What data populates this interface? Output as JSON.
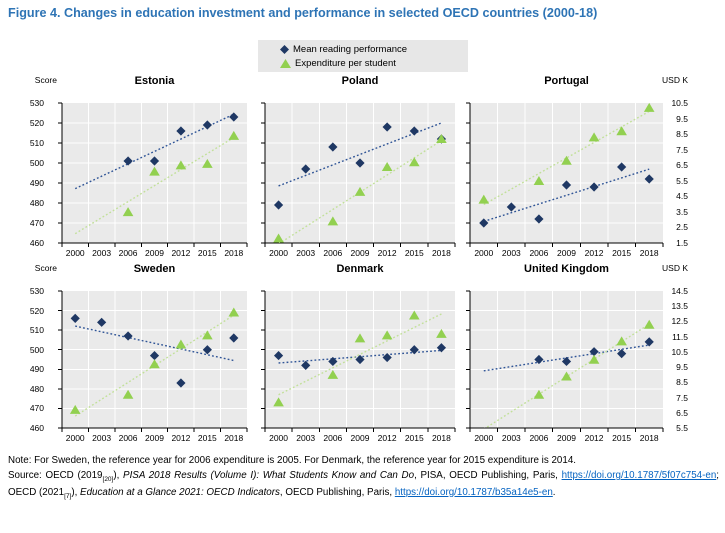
{
  "title": "Figure 4. Changes in education investment and performance in selected OECD countries (2000-18)",
  "legend": {
    "items": [
      {
        "marker": "diamond-icon",
        "label": "Mean reading performance"
      },
      {
        "marker": "triangle-icon",
        "label": "Expenditure per student"
      }
    ]
  },
  "axes": {
    "left_title": "Score",
    "right_title": "USD K",
    "years": [
      2000,
      2003,
      2006,
      2009,
      2012,
      2015,
      2018
    ],
    "score_ticks": [
      530,
      520,
      510,
      500,
      490,
      480,
      470,
      460
    ],
    "row_right_ticks": [
      [
        10.5,
        9.5,
        8.5,
        7.5,
        6.5,
        5.5,
        4.5,
        3.5,
        2.5,
        1.5
      ],
      [
        14.5,
        13.5,
        12.5,
        11.5,
        10.5,
        9.5,
        8.5,
        7.5,
        6.5,
        5.5
      ]
    ]
  },
  "chart_data": [
    {
      "type": "scatter",
      "country": "Estonia",
      "row": 0,
      "x": [
        2000,
        2003,
        2006,
        2009,
        2012,
        2015,
        2018
      ],
      "ylim_left": [
        460,
        530
      ],
      "ylim_right": [
        1.5,
        10.5
      ],
      "grid": true,
      "trendlines": "linear dotted, both series, drawn 2000-2018",
      "series": [
        {
          "name": "Mean reading performance",
          "axis": "left",
          "marker": "diamond",
          "values": [
            null,
            null,
            501,
            501,
            516,
            519,
            523
          ]
        },
        {
          "name": "Expenditure per student",
          "axis": "right",
          "marker": "triangle",
          "values": [
            null,
            null,
            3.5,
            6.1,
            6.5,
            6.6,
            8.4
          ]
        }
      ]
    },
    {
      "type": "scatter",
      "country": "Poland",
      "row": 0,
      "x": [
        2000,
        2003,
        2006,
        2009,
        2012,
        2015,
        2018
      ],
      "ylim_left": [
        460,
        530
      ],
      "ylim_right": [
        1.5,
        10.5
      ],
      "grid": true,
      "trendlines": "linear dotted, both series, drawn 2000-2018",
      "series": [
        {
          "name": "Mean reading performance",
          "axis": "left",
          "marker": "diamond",
          "values": [
            479,
            497,
            508,
            500,
            518,
            516,
            512
          ]
        },
        {
          "name": "Expenditure per student",
          "axis": "right",
          "marker": "triangle",
          "values": [
            1.8,
            null,
            2.9,
            4.8,
            6.4,
            6.7,
            8.2
          ]
        }
      ]
    },
    {
      "type": "scatter",
      "country": "Portugal",
      "row": 0,
      "x": [
        2000,
        2003,
        2006,
        2009,
        2012,
        2015,
        2018
      ],
      "ylim_left": [
        460,
        530
      ],
      "ylim_right": [
        1.5,
        10.5
      ],
      "grid": true,
      "trendlines": "linear dotted, both series, drawn 2000-2018",
      "series": [
        {
          "name": "Mean reading performance",
          "axis": "left",
          "marker": "diamond",
          "values": [
            470,
            478,
            472,
            489,
            488,
            498,
            492
          ]
        },
        {
          "name": "Expenditure per student",
          "axis": "right",
          "marker": "triangle",
          "values": [
            4.3,
            null,
            5.5,
            6.8,
            8.3,
            8.7,
            10.2
          ]
        }
      ]
    },
    {
      "type": "scatter",
      "country": "Sweden",
      "row": 1,
      "x": [
        2000,
        2003,
        2006,
        2009,
        2012,
        2015,
        2018
      ],
      "ylim_left": [
        460,
        530
      ],
      "ylim_right": [
        5.5,
        14.5
      ],
      "grid": true,
      "trendlines": "linear dotted, both series, drawn 2000-2018",
      "series": [
        {
          "name": "Mean reading performance",
          "axis": "left",
          "marker": "diamond",
          "values": [
            516,
            514,
            507,
            497,
            483,
            500,
            506
          ]
        },
        {
          "name": "Expenditure per student",
          "axis": "right",
          "marker": "triangle",
          "values": [
            6.7,
            null,
            7.7,
            9.7,
            11.0,
            11.6,
            13.1
          ]
        }
      ]
    },
    {
      "type": "scatter",
      "country": "Denmark",
      "row": 1,
      "x": [
        2000,
        2003,
        2006,
        2009,
        2012,
        2015,
        2018
      ],
      "ylim_left": [
        460,
        530
      ],
      "ylim_right": [
        5.5,
        14.5
      ],
      "grid": true,
      "trendlines": "linear dotted, both series, drawn 2000-2018",
      "series": [
        {
          "name": "Mean reading performance",
          "axis": "left",
          "marker": "diamond",
          "values": [
            497,
            492,
            494,
            495,
            496,
            500,
            501
          ]
        },
        {
          "name": "Expenditure per student",
          "axis": "right",
          "marker": "triangle",
          "values": [
            7.2,
            null,
            9.0,
            11.4,
            11.6,
            12.9,
            11.7
          ]
        }
      ]
    },
    {
      "type": "scatter",
      "country": "United Kingdom",
      "row": 1,
      "x": [
        2000,
        2003,
        2006,
        2009,
        2012,
        2015,
        2018
      ],
      "ylim_left": [
        460,
        530
      ],
      "ylim_right": [
        5.5,
        14.5
      ],
      "grid": true,
      "trendlines": "linear dotted, both series, drawn 2000-2018",
      "series": [
        {
          "name": "Mean reading performance",
          "axis": "left",
          "marker": "diamond",
          "values": [
            null,
            null,
            495,
            494,
            499,
            498,
            504
          ]
        },
        {
          "name": "Expenditure per student",
          "axis": "right",
          "marker": "triangle",
          "values": [
            null,
            null,
            7.7,
            8.9,
            10.0,
            11.2,
            12.3
          ]
        }
      ]
    }
  ],
  "note": "Note: For Sweden, the reference year for 2006 expenditure is 2005. For Denmark, the reference year for 2015 expenditure is 2014.",
  "source": {
    "segments": [
      {
        "t": "Source: OECD (2019",
        "s": "plain"
      },
      {
        "t": "[20]",
        "s": "sub"
      },
      {
        "t": "), ",
        "s": "plain"
      },
      {
        "t": "PISA 2018 Results (Volume I): What Students Know and Can Do",
        "s": "italic"
      },
      {
        "t": ", PISA, OECD Publishing, Paris, ",
        "s": "plain"
      },
      {
        "t": "https://doi.org/10.1787/5f07c754-en",
        "s": "link"
      },
      {
        "t": "; OECD (2021",
        "s": "plain"
      },
      {
        "t": "[7]",
        "s": "sub"
      },
      {
        "t": "), ",
        "s": "plain"
      },
      {
        "t": "Education at a Glance 2021: OECD Indicators",
        "s": "italic"
      },
      {
        "t": ", OECD Publishing, Paris, ",
        "s": "plain"
      },
      {
        "t": "https://doi.org/10.1787/b35a14e5-en",
        "s": "link"
      },
      {
        "t": ".",
        "s": "plain"
      }
    ]
  },
  "colors": {
    "title": "#2E74B5",
    "reading": "#1F3864",
    "reading_trend": "#2F5496",
    "expenditure": "#92D050",
    "expenditure_trend": "#C2E09A",
    "panel": "#EAEAEA",
    "gridline": "#FFFFFF",
    "legend_bg": "#E7E7E7",
    "axis": "#000000",
    "link": "#0563C1"
  }
}
